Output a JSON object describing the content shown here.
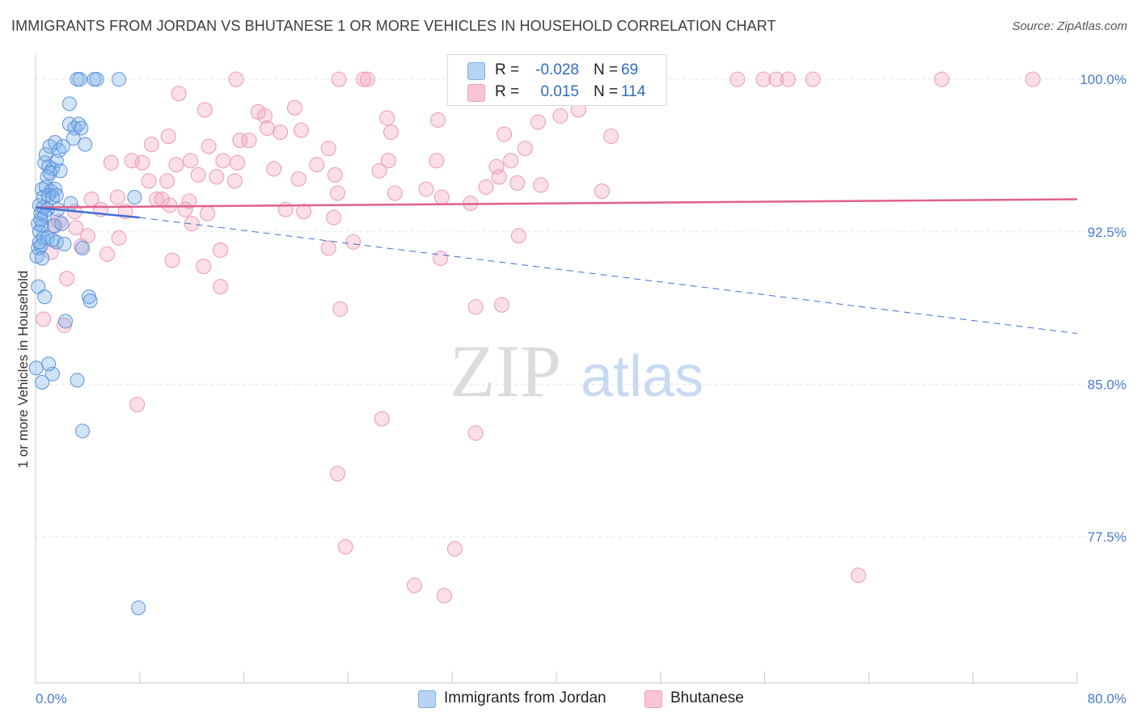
{
  "title": "IMMIGRANTS FROM JORDAN VS BHUTANESE 1 OR MORE VEHICLES IN HOUSEHOLD CORRELATION CHART",
  "source": "Source: ZipAtlas.com",
  "watermark": {
    "zip": "ZIP",
    "atlas": "atlas"
  },
  "legend": {
    "r_label": "R =",
    "n_label": "N =",
    "rows": [
      {
        "r": "-0.028",
        "n": "69"
      },
      {
        "r": "0.015",
        "n": "114"
      }
    ]
  },
  "bottom_legend": [
    "Immigrants from Jordan",
    "Bhutanese"
  ],
  "chart_data": {
    "type": "scatter",
    "title": "IMMIGRANTS FROM JORDAN VS BHUTANESE 1 OR MORE VEHICLES IN HOUSEHOLD CORRELATION CHART",
    "xlabel": "",
    "ylabel": "1 or more Vehicles in Household",
    "xlim": [
      0,
      80
    ],
    "ylim": [
      70.3,
      101.2
    ],
    "x_tick_labels": [
      "0.0%",
      "80.0%"
    ],
    "y_ticks": [
      77.5,
      85.0,
      92.5,
      100.0
    ],
    "y_tick_labels": [
      "77.5%",
      "85.0%",
      "92.5%",
      "100.0%"
    ],
    "grid": true,
    "colors": {
      "jordan": "#7aaee8",
      "jordan_line": "#3f6fd1",
      "bhutanese": "#f0a0bc",
      "bhutanese_line": "#e0608c"
    },
    "series": [
      {
        "name": "Immigrants from Jordan",
        "r": -0.028,
        "n": 69,
        "trend": {
          "solid": [
            [
              0,
              93.7
            ],
            [
              8,
              93.2
            ]
          ],
          "dashed": [
            [
              8,
              93.2
            ],
            [
              80,
              87.5
            ]
          ]
        },
        "points": [
          [
            3.2,
            100
          ],
          [
            3.4,
            100
          ],
          [
            4.5,
            100
          ],
          [
            4.7,
            100
          ],
          [
            6.4,
            100
          ],
          [
            2.6,
            98.8
          ],
          [
            2.6,
            97.8
          ],
          [
            3.0,
            97.6
          ],
          [
            3.3,
            97.8
          ],
          [
            3.5,
            97.6
          ],
          [
            1.1,
            96.7
          ],
          [
            1.5,
            96.9
          ],
          [
            1.8,
            96.5
          ],
          [
            2.1,
            96.7
          ],
          [
            3.8,
            96.8
          ],
          [
            0.7,
            95.9
          ],
          [
            1.0,
            95.7
          ],
          [
            1.3,
            95.6
          ],
          [
            1.6,
            96.0
          ],
          [
            1.9,
            95.5
          ],
          [
            0.9,
            95.2
          ],
          [
            0.5,
            94.6
          ],
          [
            0.8,
            94.7
          ],
          [
            1.2,
            94.5
          ],
          [
            1.5,
            94.6
          ],
          [
            0.6,
            94.2
          ],
          [
            1.0,
            94.3
          ],
          [
            1.3,
            94.2
          ],
          [
            1.6,
            94.3
          ],
          [
            2.7,
            93.9
          ],
          [
            0.3,
            93.8
          ],
          [
            0.6,
            93.7
          ],
          [
            0.9,
            93.6
          ],
          [
            0.4,
            93.4
          ],
          [
            0.7,
            93.3
          ],
          [
            0.2,
            92.9
          ],
          [
            0.5,
            92.8
          ],
          [
            1.4,
            92.8
          ],
          [
            2.0,
            92.9
          ],
          [
            0.3,
            92.5
          ],
          [
            0.6,
            92.2
          ],
          [
            0.9,
            92.2
          ],
          [
            1.3,
            92.1
          ],
          [
            1.6,
            92.0
          ],
          [
            0.2,
            91.7
          ],
          [
            0.4,
            91.8
          ],
          [
            3.6,
            91.7
          ],
          [
            0.1,
            91.3
          ],
          [
            0.5,
            91.2
          ],
          [
            7.6,
            94.2
          ],
          [
            0.2,
            89.8
          ],
          [
            0.7,
            89.3
          ],
          [
            4.1,
            89.3
          ],
          [
            4.2,
            89.1
          ],
          [
            2.3,
            88.1
          ],
          [
            1.3,
            85.5
          ],
          [
            3.2,
            85.2
          ],
          [
            0.5,
            85.1
          ],
          [
            0.05,
            85.8
          ],
          [
            3.6,
            82.7
          ],
          [
            7.9,
            74.0
          ],
          [
            1.0,
            86.0
          ],
          [
            2.2,
            91.9
          ],
          [
            0.4,
            93.1
          ],
          [
            1.1,
            95.4
          ],
          [
            2.9,
            97.1
          ],
          [
            0.8,
            96.3
          ],
          [
            1.7,
            93.6
          ],
          [
            0.3,
            92.0
          ]
        ]
      },
      {
        "name": "Bhutanese",
        "r": 0.015,
        "n": 114,
        "trend": {
          "solid": [
            [
              0,
              93.7
            ],
            [
              80,
              94.1
            ]
          ]
        },
        "points": [
          [
            15.4,
            100
          ],
          [
            23.3,
            100
          ],
          [
            25.2,
            100
          ],
          [
            25.5,
            100
          ],
          [
            32.4,
            100
          ],
          [
            43.1,
            100
          ],
          [
            46.3,
            100
          ],
          [
            53.9,
            100
          ],
          [
            55.9,
            100
          ],
          [
            56.9,
            100
          ],
          [
            57.8,
            100
          ],
          [
            59.7,
            100
          ],
          [
            69.6,
            100
          ],
          [
            76.6,
            100
          ],
          [
            11.0,
            99.3
          ],
          [
            13.0,
            98.5
          ],
          [
            17.1,
            98.4
          ],
          [
            17.6,
            98.2
          ],
          [
            19.9,
            98.6
          ],
          [
            27.0,
            98.1
          ],
          [
            30.9,
            98.0
          ],
          [
            10.2,
            97.2
          ],
          [
            17.8,
            97.6
          ],
          [
            18.8,
            97.4
          ],
          [
            20.4,
            97.5
          ],
          [
            27.3,
            97.4
          ],
          [
            38.6,
            97.9
          ],
          [
            40.3,
            98.2
          ],
          [
            44.2,
            97.2
          ],
          [
            8.9,
            96.8
          ],
          [
            13.3,
            96.7
          ],
          [
            15.7,
            97.0
          ],
          [
            16.4,
            97.0
          ],
          [
            22.5,
            96.6
          ],
          [
            37.6,
            96.6
          ],
          [
            5.8,
            95.9
          ],
          [
            7.4,
            96.0
          ],
          [
            8.2,
            95.9
          ],
          [
            10.8,
            95.8
          ],
          [
            11.9,
            96.0
          ],
          [
            14.4,
            96.0
          ],
          [
            15.5,
            95.9
          ],
          [
            18.3,
            95.6
          ],
          [
            21.6,
            95.8
          ],
          [
            27.1,
            96.0
          ],
          [
            30.8,
            96.0
          ],
          [
            35.4,
            95.7
          ],
          [
            36.5,
            96.0
          ],
          [
            8.7,
            95.0
          ],
          [
            10.1,
            95.0
          ],
          [
            12.5,
            95.3
          ],
          [
            13.9,
            95.2
          ],
          [
            15.3,
            95.0
          ],
          [
            20.2,
            95.1
          ],
          [
            23.0,
            95.3
          ],
          [
            23.2,
            94.4
          ],
          [
            27.6,
            94.4
          ],
          [
            30.0,
            94.6
          ],
          [
            31.2,
            94.2
          ],
          [
            34.6,
            94.7
          ],
          [
            35.6,
            95.2
          ],
          [
            37.0,
            94.9
          ],
          [
            38.8,
            94.8
          ],
          [
            43.5,
            94.5
          ],
          [
            4.3,
            94.1
          ],
          [
            6.3,
            94.2
          ],
          [
            9.3,
            94.1
          ],
          [
            9.7,
            94.1
          ],
          [
            10.3,
            93.8
          ],
          [
            11.8,
            94.0
          ],
          [
            5.0,
            93.6
          ],
          [
            6.9,
            93.5
          ],
          [
            11.5,
            93.6
          ],
          [
            13.2,
            93.4
          ],
          [
            19.2,
            93.6
          ],
          [
            20.6,
            93.5
          ],
          [
            3.0,
            93.5
          ],
          [
            1.5,
            92.8
          ],
          [
            3.1,
            92.7
          ],
          [
            6.4,
            92.2
          ],
          [
            3.5,
            91.8
          ],
          [
            5.5,
            91.4
          ],
          [
            10.5,
            91.1
          ],
          [
            12.9,
            90.8
          ],
          [
            14.2,
            91.6
          ],
          [
            22.5,
            91.7
          ],
          [
            31.1,
            91.2
          ],
          [
            37.1,
            92.3
          ],
          [
            1.2,
            91.5
          ],
          [
            2.4,
            90.2
          ],
          [
            14.2,
            89.8
          ],
          [
            0.6,
            88.2
          ],
          [
            2.2,
            87.9
          ],
          [
            23.4,
            88.7
          ],
          [
            33.8,
            88.8
          ],
          [
            35.8,
            88.9
          ],
          [
            7.8,
            84.0
          ],
          [
            26.6,
            83.3
          ],
          [
            33.8,
            82.6
          ],
          [
            23.2,
            80.6
          ],
          [
            23.8,
            77.0
          ],
          [
            32.2,
            76.9
          ],
          [
            29.1,
            75.1
          ],
          [
            31.4,
            74.6
          ],
          [
            63.2,
            75.6
          ],
          [
            41.7,
            98.5
          ],
          [
            36.0,
            97.3
          ],
          [
            26.4,
            95.5
          ],
          [
            22.9,
            93.2
          ],
          [
            12.0,
            92.9
          ],
          [
            24.4,
            92.0
          ],
          [
            33.4,
            93.9
          ],
          [
            4.0,
            92.3
          ],
          [
            1.8,
            93.0
          ]
        ]
      }
    ]
  }
}
